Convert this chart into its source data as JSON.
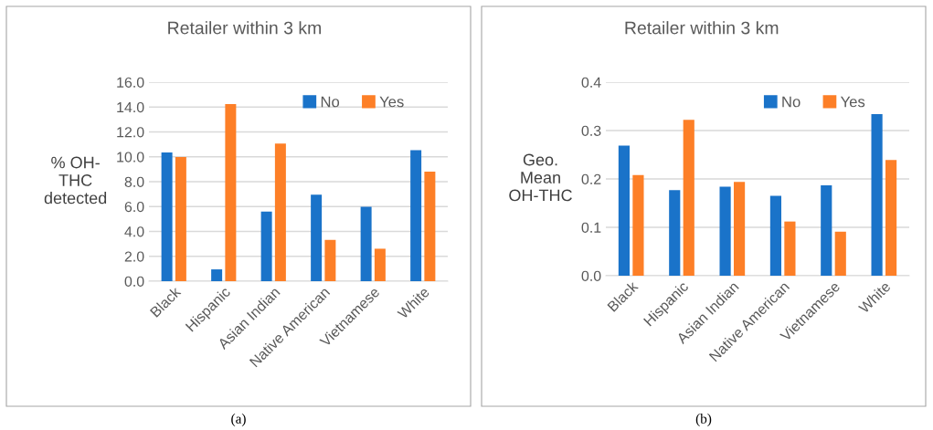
{
  "chart_data": [
    {
      "type": "bar",
      "title": "Retailer within 3 km",
      "ylabel": "% OH-\nTHC\ndetected",
      "categories": [
        "Black",
        "Hispanic",
        "Asian Indian",
        "Native American",
        "Vietnamese",
        "White"
      ],
      "series": [
        {
          "name": "No",
          "color": "#1a73c9",
          "values": [
            10.34,
            0.95,
            5.59,
            6.95,
            5.98,
            10.54
          ]
        },
        {
          "name": "Yes",
          "color": "#fd7f27",
          "values": [
            9.98,
            14.24,
            11.07,
            3.32,
            2.61,
            8.8
          ]
        }
      ],
      "ylim": [
        0,
        16
      ],
      "yticks": [
        {
          "value": 0,
          "label": "0.0"
        },
        {
          "value": 2,
          "label": "2.0"
        },
        {
          "value": 4,
          "label": "4.0"
        },
        {
          "value": 6,
          "label": "6.0"
        },
        {
          "value": 8,
          "label": "8.0"
        },
        {
          "value": 10,
          "label": "10.0"
        },
        {
          "value": 12,
          "label": "12.0"
        },
        {
          "value": 14,
          "label": "14.0"
        },
        {
          "value": 16,
          "label": "16.0"
        }
      ],
      "grid": "y",
      "legend": "top right",
      "annotations": [
        "(a)"
      ]
    },
    {
      "type": "bar",
      "title": "Retailer within 3 km",
      "ylabel": "Geo.\nMean\nOH-THC",
      "categories": [
        "Black",
        "Hispanic",
        "Asian Indian",
        "Native American",
        "Vietnamese",
        "White"
      ],
      "series": [
        {
          "name": "No",
          "color": "#1a73c9",
          "values": [
            0.269,
            0.177,
            0.184,
            0.165,
            0.187,
            0.334
          ]
        },
        {
          "name": "Yes",
          "color": "#fd7f27",
          "values": [
            0.208,
            0.322,
            0.194,
            0.112,
            0.091,
            0.239
          ]
        }
      ],
      "ylim": [
        0,
        0.4
      ],
      "yticks": [
        {
          "value": 0,
          "label": "0.0"
        },
        {
          "value": 0.1,
          "label": "0.1"
        },
        {
          "value": 0.2,
          "label": "0.2"
        },
        {
          "value": 0.3,
          "label": "0.3"
        },
        {
          "value": 0.4,
          "label": "0.4"
        }
      ],
      "grid": "y",
      "legend": "top right",
      "annotations": [
        "(b)"
      ]
    }
  ]
}
